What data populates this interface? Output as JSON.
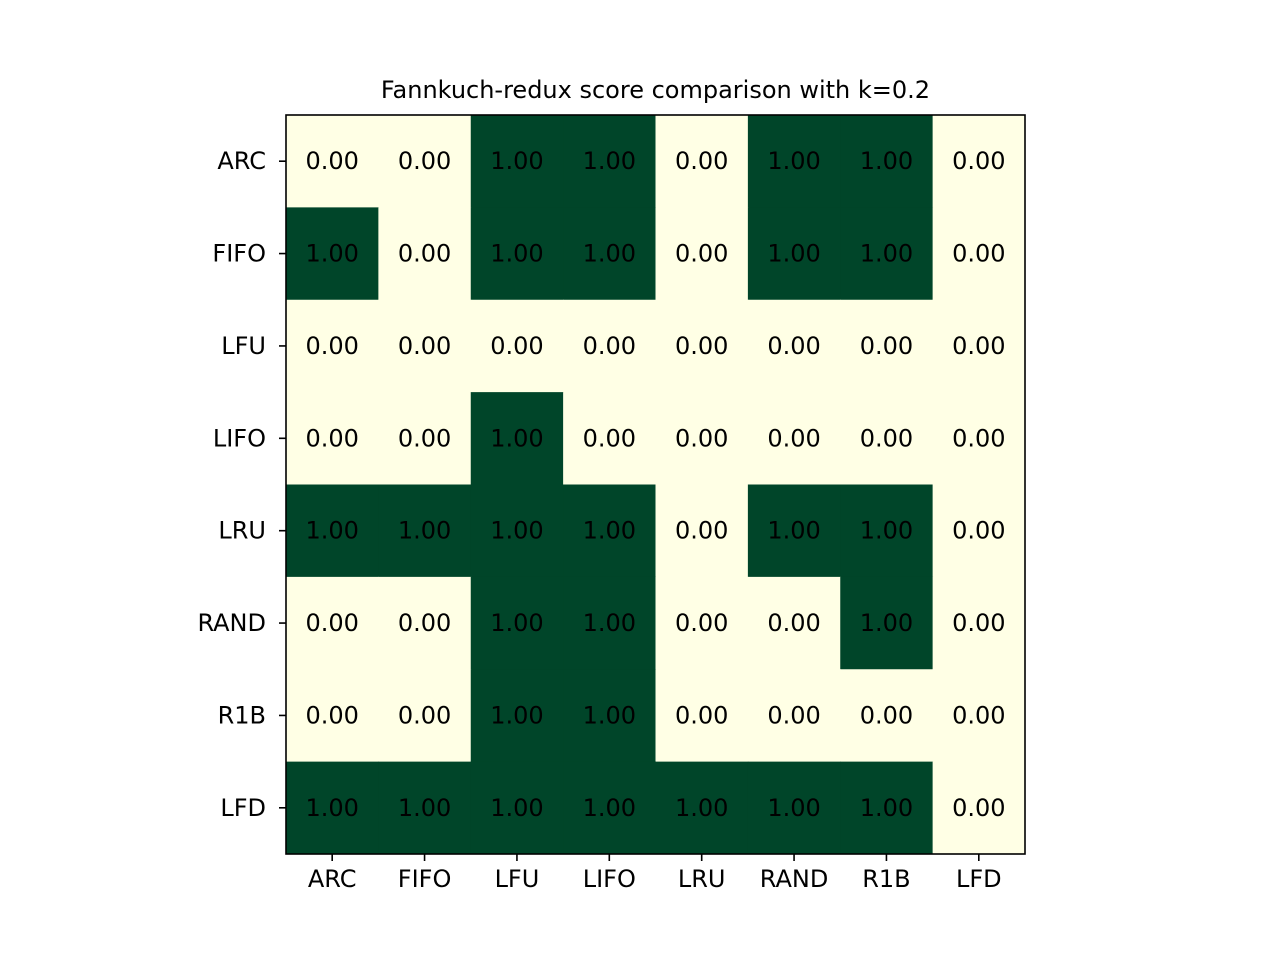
{
  "chart_data": {
    "type": "heatmap",
    "title": "Fannkuch-redux score comparison with k=0.2",
    "xlabel": "",
    "ylabel": "",
    "x_categories": [
      "ARC",
      "FIFO",
      "LFU",
      "LIFO",
      "LRU",
      "RAND",
      "R1B",
      "LFD"
    ],
    "y_categories": [
      "ARC",
      "FIFO",
      "LFU",
      "LIFO",
      "LRU",
      "RAND",
      "R1B",
      "LFD"
    ],
    "values": [
      [
        0,
        0,
        1,
        1,
        0,
        1,
        1,
        0
      ],
      [
        1,
        0,
        1,
        1,
        0,
        1,
        1,
        0
      ],
      [
        0,
        0,
        0,
        0,
        0,
        0,
        0,
        0
      ],
      [
        0,
        0,
        1,
        0,
        0,
        0,
        0,
        0
      ],
      [
        1,
        1,
        1,
        1,
        0,
        1,
        1,
        0
      ],
      [
        0,
        0,
        1,
        1,
        0,
        0,
        1,
        0
      ],
      [
        0,
        0,
        1,
        1,
        0,
        0,
        0,
        0
      ],
      [
        1,
        1,
        1,
        1,
        1,
        1,
        1,
        0
      ]
    ],
    "value_format": "0.00",
    "colors": {
      "low": "#ffffe5",
      "high": "#004529"
    },
    "grid": false
  }
}
